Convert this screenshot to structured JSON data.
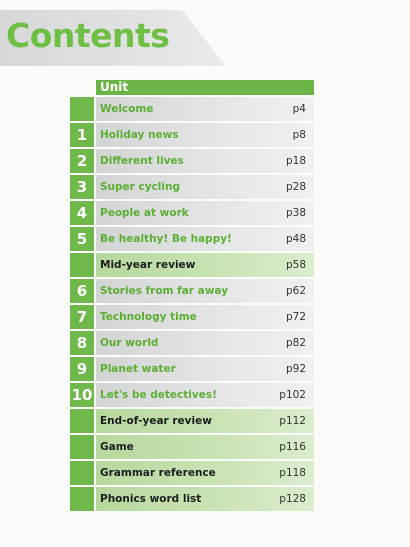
{
  "page_title": "Contents",
  "table": {
    "header": "Unit",
    "rows": [
      {
        "num": "",
        "label": "Welcome",
        "page": "p4",
        "kind": "unit"
      },
      {
        "num": "1",
        "label": "Holiday news",
        "page": "p8",
        "kind": "unit"
      },
      {
        "num": "2",
        "label": "Different lives",
        "page": "p18",
        "kind": "unit"
      },
      {
        "num": "3",
        "label": "Super cycling",
        "page": "p28",
        "kind": "unit"
      },
      {
        "num": "4",
        "label": "People at work",
        "page": "p38",
        "kind": "unit"
      },
      {
        "num": "5",
        "label": "Be healthy! Be happy!",
        "page": "p48",
        "kind": "unit"
      },
      {
        "num": "",
        "label": "Mid-year review",
        "page": "p58",
        "kind": "review"
      },
      {
        "num": "6",
        "label": "Stories from far away",
        "page": "p62",
        "kind": "unit"
      },
      {
        "num": "7",
        "label": "Technology time",
        "page": "p72",
        "kind": "unit"
      },
      {
        "num": "8",
        "label": "Our world",
        "page": "p82",
        "kind": "unit"
      },
      {
        "num": "9",
        "label": "Planet water",
        "page": "p92",
        "kind": "unit"
      },
      {
        "num": "10",
        "label": "Let's be detectives!",
        "page": "p102",
        "kind": "unit"
      },
      {
        "num": "",
        "label": "End-of-year review",
        "page": "p112",
        "kind": "review"
      },
      {
        "num": "",
        "label": "Game",
        "page": "p116",
        "kind": "review"
      },
      {
        "num": "",
        "label": "Grammar reference",
        "page": "p118",
        "kind": "review"
      },
      {
        "num": "",
        "label": "Phonics word list",
        "page": "p128",
        "kind": "review"
      }
    ]
  },
  "colors": {
    "accent_green": "#6fb84a",
    "title_green": "#6fbf45",
    "unit_text_green": "#5cae34",
    "review_row_green": "#cbe4b6",
    "row_grey": "#e6e7e7"
  }
}
